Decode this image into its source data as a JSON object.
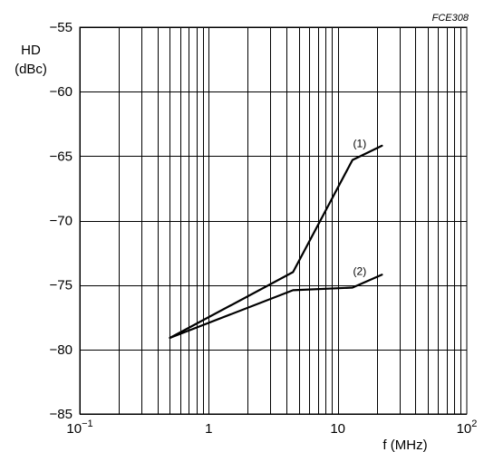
{
  "figure_id": "FCE308",
  "chart_data": {
    "type": "line",
    "x_scale": "log",
    "xlabel": "f (MHz)",
    "ylabel_line1": "HD",
    "ylabel_line2": "(dBc)",
    "xlim": [
      0.1,
      100
    ],
    "ylim": [
      -85,
      -55
    ],
    "x_ticks": [
      {
        "value": 0.1,
        "base": "10",
        "exp": "−1"
      },
      {
        "value": 1,
        "base": "1",
        "exp": ""
      },
      {
        "value": 10,
        "base": "10",
        "exp": ""
      },
      {
        "value": 100,
        "base": "10",
        "exp": "2"
      }
    ],
    "y_ticks": [
      {
        "value": -55,
        "label": "−55"
      },
      {
        "value": -60,
        "label": "−60"
      },
      {
        "value": -65,
        "label": "−65"
      },
      {
        "value": -70,
        "label": "−70"
      },
      {
        "value": -75,
        "label": "−75"
      },
      {
        "value": -80,
        "label": "−80"
      },
      {
        "value": -85,
        "label": "−85"
      }
    ],
    "grid": true,
    "series": [
      {
        "name": "(1)",
        "x": [
          0.5,
          4.5,
          13,
          22
        ],
        "y": [
          -79.1,
          -74.0,
          -65.3,
          -64.2
        ]
      },
      {
        "name": "(2)",
        "x": [
          0.5,
          4.5,
          13,
          22
        ],
        "y": [
          -79.1,
          -75.4,
          -75.2,
          -74.2
        ]
      }
    ]
  }
}
